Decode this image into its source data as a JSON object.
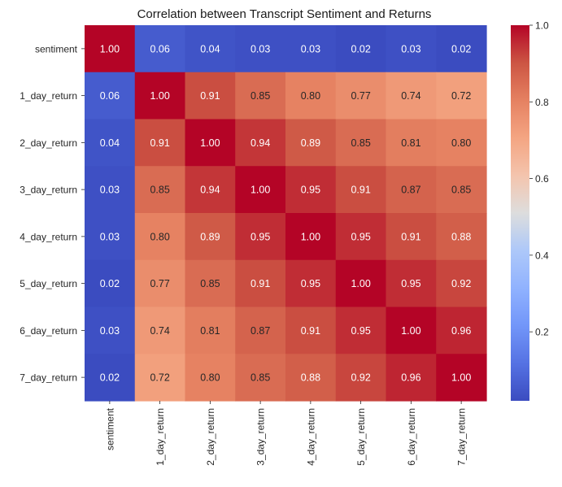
{
  "chart_data": {
    "type": "heatmap",
    "title": "Correlation between Transcript Sentiment and Returns",
    "row_labels": [
      "sentiment",
      "1_day_return",
      "2_day_return",
      "3_day_return",
      "4_day_return",
      "5_day_return",
      "6_day_return",
      "7_day_return"
    ],
    "col_labels": [
      "sentiment",
      "1_day_return",
      "2_day_return",
      "3_day_return",
      "4_day_return",
      "5_day_return",
      "6_day_return",
      "7_day_return"
    ],
    "values": [
      [
        1.0,
        0.06,
        0.04,
        0.03,
        0.03,
        0.02,
        0.03,
        0.02
      ],
      [
        0.06,
        1.0,
        0.91,
        0.85,
        0.8,
        0.77,
        0.74,
        0.72
      ],
      [
        0.04,
        0.91,
        1.0,
        0.94,
        0.89,
        0.85,
        0.81,
        0.8
      ],
      [
        0.03,
        0.85,
        0.94,
        1.0,
        0.95,
        0.91,
        0.87,
        0.85
      ],
      [
        0.03,
        0.8,
        0.89,
        0.95,
        1.0,
        0.95,
        0.91,
        0.88
      ],
      [
        0.02,
        0.77,
        0.85,
        0.91,
        0.95,
        1.0,
        0.95,
        0.92
      ],
      [
        0.03,
        0.74,
        0.81,
        0.87,
        0.91,
        0.95,
        1.0,
        0.96
      ],
      [
        0.02,
        0.72,
        0.8,
        0.85,
        0.88,
        0.92,
        0.96,
        1.0
      ]
    ],
    "annotation_format": "0.00",
    "colormap": "coolwarm",
    "color_range": [
      0.02,
      1.0
    ],
    "colorbar": {
      "ticks": [
        0.2,
        0.4,
        0.6,
        0.8,
        1.0
      ],
      "tick_labels": [
        "0.2",
        "0.4",
        "0.6",
        "0.8",
        "1.0"
      ]
    },
    "xlabel": "",
    "ylabel": "",
    "grid": false
  }
}
